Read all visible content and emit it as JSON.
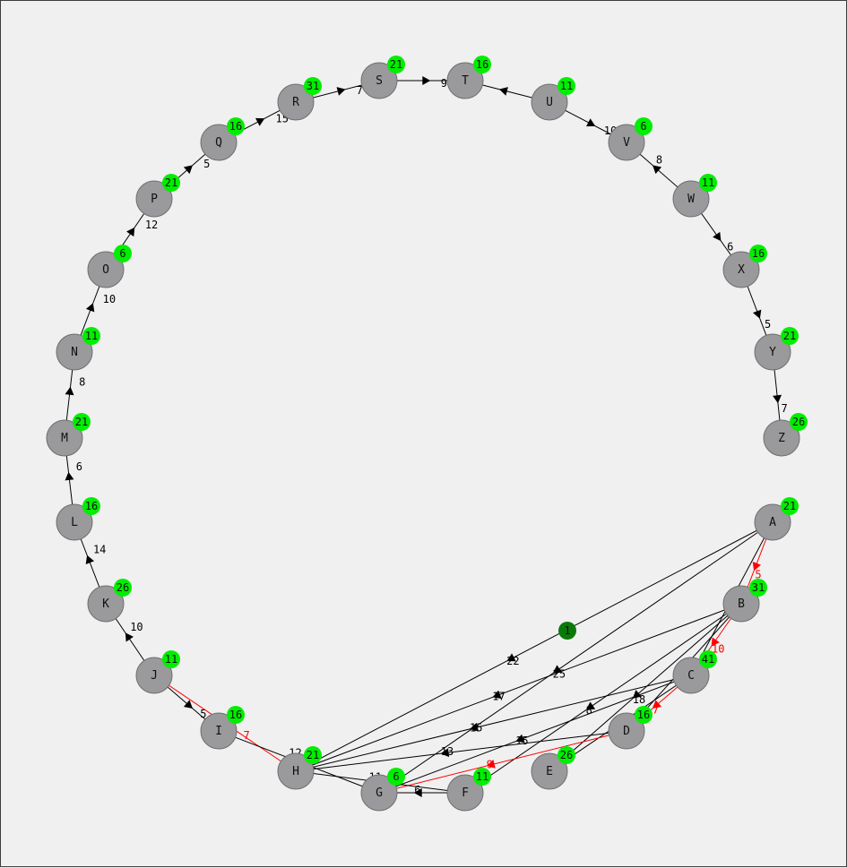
{
  "graph": {
    "background": "#f0f0f0",
    "node_color": "#9a999c",
    "badge_color": "#00ee00",
    "highlight_color": "#ff0000",
    "edge_color": "#000000",
    "nodes": [
      {
        "id": "A",
        "label": "A",
        "badge": "21"
      },
      {
        "id": "B",
        "label": "B",
        "badge": "31"
      },
      {
        "id": "C",
        "label": "C",
        "badge": "41"
      },
      {
        "id": "D",
        "label": "D",
        "badge": "16"
      },
      {
        "id": "E",
        "label": "E",
        "badge": "26"
      },
      {
        "id": "F",
        "label": "F",
        "badge": "11"
      },
      {
        "id": "G",
        "label": "G",
        "badge": "6"
      },
      {
        "id": "H",
        "label": "H",
        "badge": "21"
      },
      {
        "id": "I",
        "label": "I",
        "badge": "16"
      },
      {
        "id": "J",
        "label": "J",
        "badge": "11"
      },
      {
        "id": "K",
        "label": "K",
        "badge": "26"
      },
      {
        "id": "L",
        "label": "L",
        "badge": "16"
      },
      {
        "id": "M",
        "label": "M",
        "badge": "21"
      },
      {
        "id": "N",
        "label": "N",
        "badge": "11"
      },
      {
        "id": "O",
        "label": "O",
        "badge": "6"
      },
      {
        "id": "P",
        "label": "P",
        "badge": "21"
      },
      {
        "id": "Q",
        "label": "Q",
        "badge": "16"
      },
      {
        "id": "R",
        "label": "R",
        "badge": "31"
      },
      {
        "id": "S",
        "label": "S",
        "badge": "21"
      },
      {
        "id": "T",
        "label": "T",
        "badge": "16"
      },
      {
        "id": "U",
        "label": "U",
        "badge": "11"
      },
      {
        "id": "V",
        "label": "V",
        "badge": "6"
      },
      {
        "id": "W",
        "label": "W",
        "badge": "11"
      },
      {
        "id": "X",
        "label": "X",
        "badge": "16"
      },
      {
        "id": "Y",
        "label": "Y",
        "badge": "21"
      },
      {
        "id": "Z",
        "label": "Z",
        "badge": "26"
      }
    ],
    "token": {
      "label": "1",
      "color": "#0a7a0a"
    },
    "edges": [
      {
        "from": "A",
        "to": "B",
        "weight": "5",
        "highlight": true
      },
      {
        "from": "A",
        "to": "C",
        "weight": "20",
        "highlight": false
      },
      {
        "from": "A",
        "to": "H",
        "weight": "22",
        "highlight": false
      },
      {
        "from": "A",
        "to": "G",
        "weight": "25",
        "highlight": false
      },
      {
        "from": "B",
        "to": "C",
        "weight": "10",
        "highlight": true
      },
      {
        "from": "B",
        "to": "D",
        "weight": "14",
        "highlight": false
      },
      {
        "from": "B",
        "to": "H",
        "weight": "17",
        "highlight": false
      },
      {
        "from": "B",
        "to": "E",
        "weight": "18",
        "highlight": false
      },
      {
        "from": "B",
        "to": "F",
        "weight": "8",
        "highlight": false
      },
      {
        "from": "C",
        "to": "D",
        "weight": "7",
        "highlight": true
      },
      {
        "from": "C",
        "to": "E",
        "weight": "3",
        "highlight": false
      },
      {
        "from": "C",
        "to": "H",
        "weight": "15",
        "highlight": false
      },
      {
        "from": "C",
        "to": "G",
        "weight": "15",
        "highlight": false
      },
      {
        "from": "D",
        "to": "H",
        "weight": "13",
        "highlight": false
      },
      {
        "from": "D",
        "to": "G",
        "weight": "9",
        "highlight": true
      },
      {
        "from": "F",
        "to": "G",
        "weight": "6",
        "highlight": false
      },
      {
        "from": "F",
        "to": "H",
        "weight": "11",
        "highlight": false
      },
      {
        "from": "J",
        "to": "I",
        "weight": "5",
        "highlight": false
      },
      {
        "from": "J",
        "to": "H",
        "weight": "7",
        "highlight": true
      },
      {
        "from": "G",
        "to": "I",
        "weight": "12",
        "highlight": false
      },
      {
        "from": "J",
        "to": "K",
        "weight": "10",
        "highlight": false
      },
      {
        "from": "K",
        "to": "L",
        "weight": "14",
        "highlight": false
      },
      {
        "from": "L",
        "to": "M",
        "weight": "6",
        "highlight": false
      },
      {
        "from": "M",
        "to": "N",
        "weight": "8",
        "highlight": false
      },
      {
        "from": "N",
        "to": "O",
        "weight": "10",
        "highlight": false
      },
      {
        "from": "O",
        "to": "P",
        "weight": "12",
        "highlight": false
      },
      {
        "from": "P",
        "to": "Q",
        "weight": "5",
        "highlight": false
      },
      {
        "from": "Q",
        "to": "R",
        "weight": "15",
        "highlight": false
      },
      {
        "from": "R",
        "to": "S",
        "weight": "7",
        "highlight": false
      },
      {
        "from": "S",
        "to": "T",
        "weight": "9",
        "highlight": false
      },
      {
        "from": "U",
        "to": "T",
        "weight": "",
        "highlight": false
      },
      {
        "from": "U",
        "to": "V",
        "weight": "10",
        "highlight": false
      },
      {
        "from": "W",
        "to": "V",
        "weight": "8",
        "highlight": false
      },
      {
        "from": "W",
        "to": "X",
        "weight": "6",
        "highlight": false
      },
      {
        "from": "X",
        "to": "Y",
        "weight": "5",
        "highlight": false
      },
      {
        "from": "Y",
        "to": "Z",
        "weight": "7",
        "highlight": false
      }
    ]
  }
}
